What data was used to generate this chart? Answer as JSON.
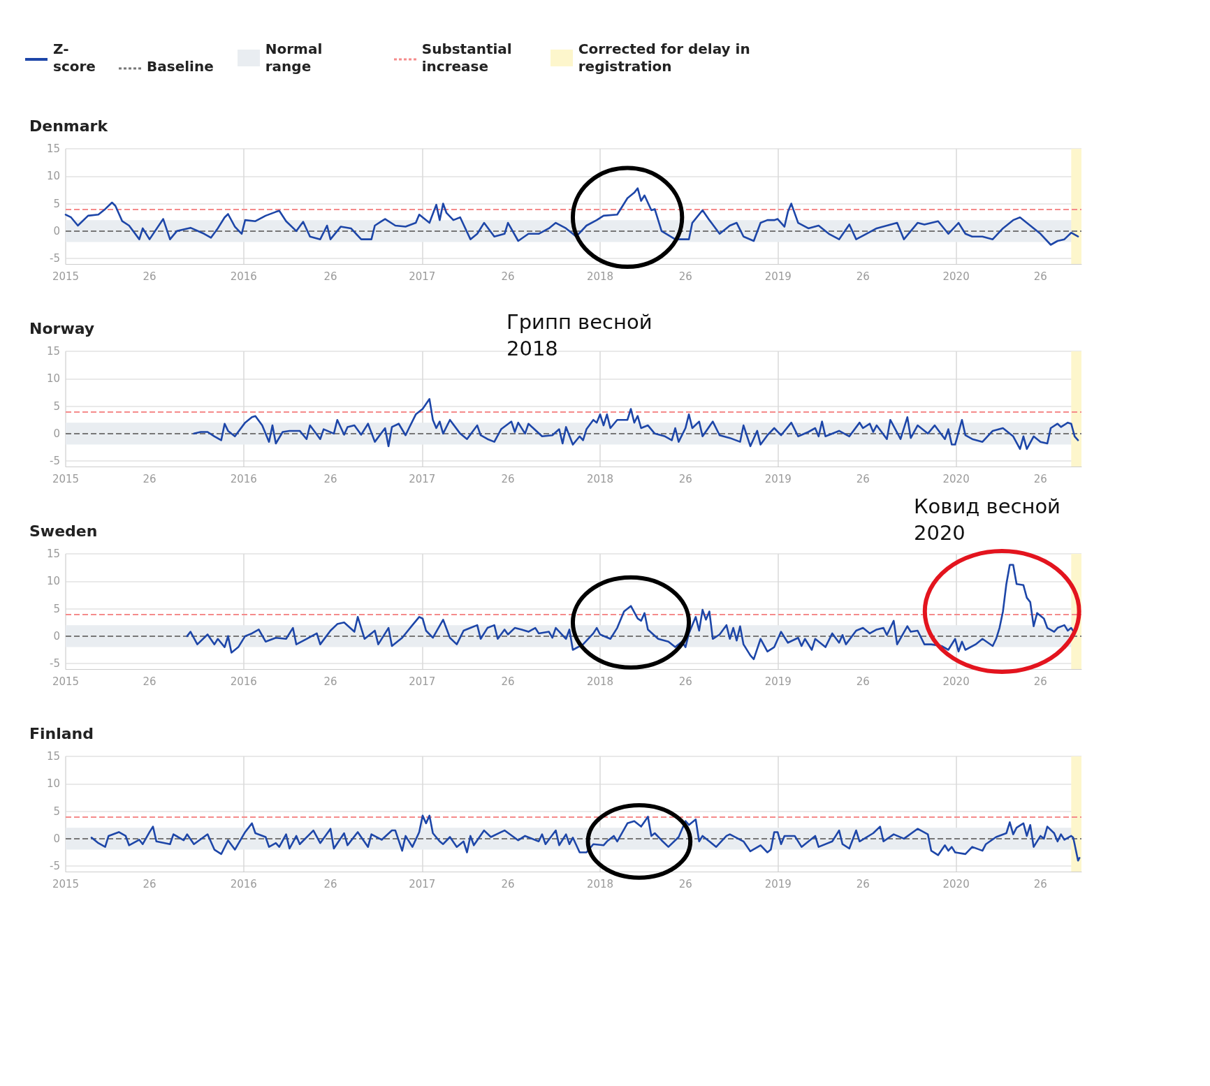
{
  "chart_data": [
    {
      "type": "line",
      "title": "Denmark",
      "legend": "top left",
      "marker": "none",
      "line_style": "solid",
      "grid": true,
      "xlim": [
        "2015-01-01",
        "2020-09-14"
      ],
      "xticks": [
        {
          "value": "2015-01-01",
          "label": "2015"
        },
        {
          "value": "2015-06-22",
          "label": "26"
        },
        {
          "value": "2016-01-01",
          "label": "2016"
        },
        {
          "value": "2016-06-27",
          "label": "26"
        },
        {
          "value": "2017-01-01",
          "label": "2017"
        },
        {
          "value": "2017-06-26",
          "label": "26"
        },
        {
          "value": "2018-01-01",
          "label": "2018"
        },
        {
          "value": "2018-06-25",
          "label": "26"
        },
        {
          "value": "2019-01-01",
          "label": "2019"
        },
        {
          "value": "2019-06-24",
          "label": "26"
        },
        {
          "value": "2020-01-01",
          "label": "2020"
        },
        {
          "value": "2020-06-22",
          "label": "26"
        }
      ],
      "ylim": [
        -6,
        15
      ],
      "yticks": [
        -5,
        0,
        5,
        10,
        15
      ],
      "ref_lines": [
        {
          "axis": "y",
          "value": 0,
          "label": "Baseline",
          "color": "#777777",
          "line_style": "dashed"
        },
        {
          "axis": "y",
          "value": 4,
          "label": "Substantial increase",
          "color": "#f58b8b",
          "line_style": "dashed"
        }
      ],
      "bands": [
        {
          "axis": "y",
          "from": -2,
          "to": 2,
          "label": "Normal range",
          "color": "#e9edf1"
        },
        {
          "axis": "x",
          "from": "2020-08-24",
          "to": "2020-09-14",
          "label": "Corrected for delay in registration",
          "color": "#fdf6cc"
        }
      ],
      "series": [
        {
          "name": "Z-score",
          "color": "#1d46a8",
          "x": [
            "2015-01-01",
            "2015-01-12",
            "2015-01-26",
            "2015-02-16",
            "2015-03-09",
            "2015-03-23",
            "2015-04-06",
            "2015-04-13",
            "2015-04-27",
            "2015-05-11",
            "2015-06-01",
            "2015-06-08",
            "2015-06-22",
            "2015-07-20",
            "2015-08-03",
            "2015-08-17",
            "2015-09-14",
            "2015-10-12",
            "2015-10-26",
            "2015-11-09",
            "2015-11-23",
            "2015-11-30",
            "2015-12-14",
            "2015-12-28",
            "2016-01-04",
            "2016-01-25",
            "2016-02-15",
            "2016-03-07",
            "2016-03-14",
            "2016-03-28",
            "2016-04-18",
            "2016-05-02",
            "2016-05-16",
            "2016-06-06",
            "2016-06-20",
            "2016-06-27",
            "2016-07-18",
            "2016-08-08",
            "2016-08-29",
            "2016-09-19",
            "2016-09-26",
            "2016-10-10",
            "2016-10-17",
            "2016-11-07",
            "2016-11-28",
            "2016-12-19",
            "2016-12-26",
            "2017-01-16",
            "2017-01-30",
            "2017-02-06",
            "2017-02-13",
            "2017-02-20",
            "2017-03-06",
            "2017-03-20",
            "2017-04-10",
            "2017-04-24",
            "2017-05-08",
            "2017-05-29",
            "2017-06-19",
            "2017-06-26",
            "2017-07-17",
            "2017-08-07",
            "2017-08-28",
            "2017-09-18",
            "2017-10-02",
            "2017-10-23",
            "2017-11-13",
            "2017-12-04",
            "2017-12-25",
            "2018-01-08",
            "2018-02-05",
            "2018-02-26",
            "2018-03-12",
            "2018-03-19",
            "2018-03-26",
            "2018-04-02",
            "2018-04-16",
            "2018-04-23",
            "2018-05-07",
            "2018-06-04",
            "2018-07-02",
            "2018-07-09",
            "2018-07-30",
            "2018-08-13",
            "2018-09-03",
            "2018-09-24",
            "2018-10-08",
            "2018-10-22",
            "2018-11-12",
            "2018-11-26",
            "2018-12-10",
            "2018-12-24",
            "2018-12-31",
            "2019-01-14",
            "2019-01-21",
            "2019-01-28",
            "2019-02-11",
            "2019-03-04",
            "2019-03-25",
            "2019-04-15",
            "2019-05-06",
            "2019-05-27",
            "2019-06-10",
            "2019-07-01",
            "2019-07-22",
            "2019-08-12",
            "2019-09-02",
            "2019-09-16",
            "2019-10-14",
            "2019-10-28",
            "2019-11-25",
            "2019-12-16",
            "2020-01-06",
            "2020-01-20",
            "2020-02-03",
            "2020-02-24",
            "2020-03-16",
            "2020-04-06",
            "2020-04-27",
            "2020-05-11",
            "2020-06-01",
            "2020-06-22",
            "2020-07-13",
            "2020-07-27",
            "2020-08-10",
            "2020-08-24",
            "2020-09-07"
          ],
          "values": [
            3,
            2.5,
            1,
            2.8,
            3,
            4,
            5.2,
            4.6,
            1.8,
            1,
            -1.5,
            0.5,
            -1.5,
            2.2,
            -1.5,
            0,
            0.6,
            -0.5,
            -1.2,
            0.5,
            2.5,
            3.1,
            0.8,
            -0.5,
            2,
            1.8,
            2.8,
            3.5,
            3.7,
            1.8,
            0,
            1.7,
            -1,
            -1.5,
            1,
            -1.5,
            0.8,
            0.5,
            -1.5,
            -1.5,
            1,
            1.8,
            2.2,
            1,
            0.8,
            1.5,
            3,
            1.5,
            4.8,
            2,
            5,
            3.3,
            2,
            2.5,
            -1.5,
            -0.5,
            1.5,
            -1,
            -0.5,
            1.5,
            -1.8,
            -0.5,
            -0.5,
            0.5,
            1.5,
            0.5,
            -1,
            1,
            2,
            2.8,
            3,
            6,
            7,
            7.8,
            5.5,
            6.5,
            3.8,
            4,
            0,
            -1.5,
            -1.5,
            1.5,
            3.8,
            2,
            -0.5,
            1,
            1.5,
            -1,
            -1.8,
            1.5,
            2,
            2,
            2.2,
            0.8,
            3.5,
            5,
            1.5,
            0.5,
            1,
            -0.5,
            -1.5,
            1.2,
            -1.5,
            -0.5,
            0.5,
            1,
            1.5,
            -1.5,
            1.5,
            1.2,
            1.8,
            -0.5,
            1.5,
            -0.5,
            -1,
            -1,
            -1.5,
            0.5,
            2,
            2.5,
            1,
            -0.5,
            -2.5,
            -1.8,
            -1.5,
            -0.3,
            -1
          ]
        }
      ]
    },
    {
      "type": "line",
      "title": "Norway",
      "marker": "none",
      "line_style": "solid",
      "grid": true,
      "annotations": [
        "Грипп весной 2018"
      ],
      "xlim": [
        "2015-01-01",
        "2020-09-14"
      ],
      "xticks": [
        {
          "value": "2015-01-01",
          "label": "2015"
        },
        {
          "value": "2015-06-22",
          "label": "26"
        },
        {
          "value": "2016-01-01",
          "label": "2016"
        },
        {
          "value": "2016-06-27",
          "label": "26"
        },
        {
          "value": "2017-01-01",
          "label": "2017"
        },
        {
          "value": "2017-06-26",
          "label": "26"
        },
        {
          "value": "2018-01-01",
          "label": "2018"
        },
        {
          "value": "2018-06-25",
          "label": "26"
        },
        {
          "value": "2019-01-01",
          "label": "2019"
        },
        {
          "value": "2019-06-24",
          "label": "26"
        },
        {
          "value": "2020-01-01",
          "label": "2020"
        },
        {
          "value": "2020-06-22",
          "label": "26"
        }
      ],
      "ylim": [
        -6,
        15
      ],
      "yticks": [
        -5,
        0,
        5,
        10,
        15
      ],
      "ref_lines": [
        {
          "axis": "y",
          "value": 0,
          "color": "#777777",
          "line_style": "dashed"
        },
        {
          "axis": "y",
          "value": 4,
          "color": "#f58b8b",
          "line_style": "dashed"
        }
      ],
      "bands": [
        {
          "axis": "y",
          "from": -2,
          "to": 2,
          "color": "#e9edf1"
        },
        {
          "axis": "x",
          "from": "2020-08-24",
          "to": "2020-09-14",
          "color": "#fdf6cc"
        }
      ],
      "series": [
        {
          "color": "#1d46a8",
          "x": [
            "2015-09-21",
            "2015-10-05",
            "2015-10-19",
            "2015-11-02",
            "2015-11-16",
            "2015-11-23",
            "2015-11-30",
            "2015-12-14",
            "2016-01-04",
            "2016-01-18",
            "2016-01-25",
            "2016-02-08",
            "2016-02-22",
            "2016-02-29",
            "2016-03-07",
            "2016-03-21",
            "2016-04-04",
            "2016-04-25",
            "2016-05-09",
            "2016-05-16",
            "2016-06-06",
            "2016-06-13",
            "2016-07-04",
            "2016-07-11",
            "2016-07-25",
            "2016-08-01",
            "2016-08-15",
            "2016-08-29",
            "2016-09-12",
            "2016-09-26",
            "2016-10-17",
            "2016-10-24",
            "2016-10-31",
            "2016-11-14",
            "2016-11-28",
            "2016-12-05",
            "2016-12-19",
            "2017-01-02",
            "2017-01-16",
            "2017-01-23",
            "2017-01-30",
            "2017-02-06",
            "2017-02-13",
            "2017-02-27",
            "2017-03-20",
            "2017-04-03",
            "2017-04-24",
            "2017-05-01",
            "2017-05-15",
            "2017-05-29",
            "2017-06-12",
            "2017-07-03",
            "2017-07-10",
            "2017-07-17",
            "2017-07-31",
            "2017-08-07",
            "2017-09-04",
            "2017-09-25",
            "2017-10-09",
            "2017-10-16",
            "2017-10-23",
            "2017-11-06",
            "2017-11-20",
            "2017-11-27",
            "2017-12-04",
            "2017-12-18",
            "2017-12-25",
            "2018-01-01",
            "2018-01-08",
            "2018-01-15",
            "2018-01-22",
            "2018-02-05",
            "2018-02-26",
            "2018-03-05",
            "2018-03-12",
            "2018-03-19",
            "2018-03-26",
            "2018-04-09",
            "2018-04-23",
            "2018-05-14",
            "2018-05-28",
            "2018-06-04",
            "2018-06-11",
            "2018-06-25",
            "2018-07-02",
            "2018-07-09",
            "2018-07-23",
            "2018-07-30",
            "2018-08-20",
            "2018-09-03",
            "2018-09-24",
            "2018-10-15",
            "2018-10-22",
            "2018-11-05",
            "2018-11-19",
            "2018-11-26",
            "2018-12-10",
            "2018-12-24",
            "2019-01-07",
            "2019-01-28",
            "2019-02-11",
            "2019-03-04",
            "2019-03-18",
            "2019-03-25",
            "2019-04-01",
            "2019-04-08",
            "2019-05-06",
            "2019-05-27",
            "2019-06-17",
            "2019-06-24",
            "2019-07-08",
            "2019-07-15",
            "2019-07-22",
            "2019-08-12",
            "2019-08-19",
            "2019-09-09",
            "2019-09-23",
            "2019-09-30",
            "2019-10-14",
            "2019-11-04",
            "2019-11-18",
            "2019-12-09",
            "2019-12-16",
            "2019-12-23",
            "2019-12-30",
            "2020-01-13",
            "2020-01-20",
            "2020-02-03",
            "2020-02-24",
            "2020-03-16",
            "2020-04-06",
            "2020-04-27",
            "2020-05-11",
            "2020-05-18",
            "2020-05-25",
            "2020-06-08",
            "2020-06-22",
            "2020-07-06",
            "2020-07-13",
            "2020-07-27",
            "2020-08-03",
            "2020-08-17",
            "2020-08-24",
            "2020-08-31",
            "2020-09-07"
          ],
          "values": [
            0,
            0.3,
            0.3,
            -0.5,
            -1.2,
            1.8,
            0.5,
            -0.5,
            2,
            3,
            3.2,
            1.5,
            -1.5,
            1.5,
            -1.8,
            0.3,
            0.5,
            0.5,
            -1,
            1.5,
            -1,
            0.8,
            0,
            2.5,
            -0.2,
            1.2,
            1.5,
            -0.2,
            1.8,
            -1.5,
            1,
            -2.3,
            1.2,
            1.8,
            -0.3,
            1,
            3.5,
            4.5,
            6.3,
            2.5,
            1,
            2.2,
            0,
            2.5,
            0,
            -1,
            1.5,
            -0.3,
            -1,
            -1.5,
            0.8,
            2.2,
            0.3,
            2,
            0,
            1.8,
            -0.5,
            -0.3,
            0.8,
            -1.8,
            1.2,
            -2,
            -0.5,
            -1.2,
            0.8,
            2.5,
            2,
            3.5,
            1.5,
            3.5,
            1,
            2.5,
            2.5,
            4.5,
            2,
            3.2,
            1,
            1.5,
            0,
            -0.5,
            -1.2,
            1,
            -1.5,
            1,
            3.5,
            1,
            2.2,
            -0.5,
            2.2,
            -0.3,
            -0.8,
            -1.5,
            1.5,
            -2.3,
            0.5,
            -2,
            -0.3,
            1,
            -0.3,
            2,
            -0.5,
            0.3,
            1,
            -0.5,
            2.2,
            -0.5,
            0.5,
            -0.5,
            2,
            1,
            1.8,
            0.3,
            1.5,
            -1,
            2.5,
            -1,
            3,
            -0.8,
            1.5,
            0,
            1.5,
            -1,
            0.8,
            -2,
            -2,
            2.5,
            -0.3,
            -1,
            -1.5,
            0.5,
            1,
            -0.5,
            -2.8,
            -0.5,
            -2.8,
            -0.5,
            -1.5,
            -1.8,
            1,
            1.8,
            1.2,
            2,
            1.8,
            -0.5,
            -1.2
          ]
        }
      ]
    },
    {
      "type": "line",
      "title": "Sweden",
      "marker": "none",
      "line_style": "solid",
      "grid": true,
      "annotations": [
        "Ковид весной 2020"
      ],
      "xlim": [
        "2015-01-01",
        "2020-09-14"
      ],
      "xticks": [
        {
          "value": "2015-01-01",
          "label": "2015"
        },
        {
          "value": "2015-06-22",
          "label": "26"
        },
        {
          "value": "2016-01-01",
          "label": "2016"
        },
        {
          "value": "2016-06-27",
          "label": "26"
        },
        {
          "value": "2017-01-01",
          "label": "2017"
        },
        {
          "value": "2017-06-26",
          "label": "26"
        },
        {
          "value": "2018-01-01",
          "label": "2018"
        },
        {
          "value": "2018-06-25",
          "label": "26"
        },
        {
          "value": "2019-01-01",
          "label": "2019"
        },
        {
          "value": "2019-06-24",
          "label": "26"
        },
        {
          "value": "2020-01-01",
          "label": "2020"
        },
        {
          "value": "2020-06-22",
          "label": "26"
        }
      ],
      "ylim": [
        -6,
        15
      ],
      "yticks": [
        -5,
        0,
        5,
        10,
        15
      ],
      "ref_lines": [
        {
          "axis": "y",
          "value": 0,
          "color": "#777777",
          "line_style": "dashed"
        },
        {
          "axis": "y",
          "value": 4,
          "color": "#f58b8b",
          "line_style": "dashed"
        }
      ],
      "bands": [
        {
          "axis": "y",
          "from": -2,
          "to": 2,
          "color": "#e9edf1"
        },
        {
          "axis": "x",
          "from": "2020-08-24",
          "to": "2020-09-14",
          "color": "#fdf6cc"
        }
      ],
      "series": [
        {
          "color": "#1d46a8",
          "x": [
            "2015-09-07",
            "2015-09-14",
            "2015-09-28",
            "2015-10-19",
            "2015-11-02",
            "2015-11-09",
            "2015-11-23",
            "2015-11-30",
            "2015-12-07",
            "2015-12-21",
            "2016-01-04",
            "2016-01-18",
            "2016-02-01",
            "2016-02-15",
            "2016-03-07",
            "2016-03-28",
            "2016-04-11",
            "2016-04-18",
            "2016-05-09",
            "2016-05-30",
            "2016-06-06",
            "2016-06-27",
            "2016-07-11",
            "2016-07-25",
            "2016-08-15",
            "2016-08-22",
            "2016-09-05",
            "2016-09-26",
            "2016-10-03",
            "2016-10-24",
            "2016-10-31",
            "2016-11-21",
            "2016-12-12",
            "2016-12-26",
            "2017-01-02",
            "2017-01-09",
            "2017-01-23",
            "2017-02-13",
            "2017-02-27",
            "2017-03-13",
            "2017-03-27",
            "2017-04-10",
            "2017-04-24",
            "2017-05-01",
            "2017-05-15",
            "2017-05-29",
            "2017-06-05",
            "2017-06-19",
            "2017-06-26",
            "2017-07-10",
            "2017-07-24",
            "2017-08-07",
            "2017-08-21",
            "2017-08-28",
            "2017-09-18",
            "2017-09-25",
            "2017-10-02",
            "2017-10-23",
            "2017-10-30",
            "2017-11-06",
            "2017-11-27",
            "2017-12-18",
            "2017-12-25",
            "2018-01-01",
            "2018-01-22",
            "2018-02-05",
            "2018-02-19",
            "2018-03-05",
            "2018-03-19",
            "2018-03-26",
            "2018-04-02",
            "2018-04-09",
            "2018-04-30",
            "2018-05-21",
            "2018-06-04",
            "2018-06-18",
            "2018-06-25",
            "2018-07-02",
            "2018-07-16",
            "2018-07-23",
            "2018-07-30",
            "2018-08-06",
            "2018-08-13",
            "2018-08-20",
            "2018-09-03",
            "2018-09-17",
            "2018-09-24",
            "2018-10-01",
            "2018-10-08",
            "2018-10-15",
            "2018-10-22",
            "2018-11-05",
            "2018-11-12",
            "2018-11-26",
            "2018-12-10",
            "2018-12-24",
            "2019-01-07",
            "2019-01-21",
            "2019-02-11",
            "2019-02-18",
            "2019-02-25",
            "2019-03-11",
            "2019-03-18",
            "2019-04-08",
            "2019-04-22",
            "2019-05-06",
            "2019-05-13",
            "2019-05-20",
            "2019-06-10",
            "2019-06-24",
            "2019-07-08",
            "2019-07-22",
            "2019-08-05",
            "2019-08-12",
            "2019-08-26",
            "2019-09-02",
            "2019-09-23",
            "2019-09-30",
            "2019-10-14",
            "2019-10-28",
            "2019-11-11",
            "2019-12-02",
            "2019-12-16",
            "2019-12-30",
            "2020-01-06",
            "2020-01-13",
            "2020-01-20",
            "2020-02-10",
            "2020-02-24",
            "2020-03-16",
            "2020-03-23",
            "2020-03-30",
            "2020-04-06",
            "2020-04-13",
            "2020-04-20",
            "2020-04-27",
            "2020-05-04",
            "2020-05-18",
            "2020-05-25",
            "2020-06-01",
            "2020-06-08",
            "2020-06-15",
            "2020-06-29",
            "2020-07-06",
            "2020-07-20",
            "2020-07-27",
            "2020-08-10",
            "2020-08-17",
            "2020-08-24",
            "2020-08-31"
          ],
          "values": [
            0,
            0.8,
            -1.5,
            0.3,
            -1.5,
            -0.5,
            -2,
            0,
            -3,
            -2,
            0,
            0.5,
            1.2,
            -1,
            -0.3,
            -0.5,
            1.5,
            -1.5,
            -0.5,
            0.5,
            -1.5,
            1,
            2.2,
            2.5,
            0.8,
            3.5,
            -0.5,
            1,
            -1.5,
            1.5,
            -1.8,
            -0.3,
            2,
            3.5,
            3.2,
            1,
            -0.3,
            3,
            -0.3,
            -1.5,
            1,
            1.5,
            2,
            -0.5,
            1.5,
            2,
            -0.5,
            1.2,
            0.3,
            1.5,
            1.2,
            0.8,
            1.5,
            0.5,
            0.8,
            -0.3,
            1.5,
            -0.5,
            1.2,
            -2.5,
            -1.5,
            0.5,
            1.5,
            0.3,
            -0.5,
            1.5,
            4.5,
            5.5,
            3.2,
            2.8,
            4.2,
            1.2,
            -0.5,
            -1,
            -2,
            -1,
            -2,
            0.5,
            3.5,
            1,
            4.8,
            3,
            4.5,
            -0.5,
            0.3,
            2,
            -0.5,
            1.5,
            -0.8,
            1.8,
            -1.5,
            -3.5,
            -4.2,
            -0.5,
            -2.8,
            -2,
            0.8,
            -1.2,
            -0.3,
            -1.8,
            -0.5,
            -2.5,
            -0.5,
            -2,
            0.5,
            -1.2,
            0.2,
            -1.5,
            1,
            1.5,
            0.5,
            1.2,
            1.5,
            0.2,
            2.8,
            -1.5,
            1.8,
            0.8,
            1,
            -1.5,
            -1.5,
            -1.8,
            -2.5,
            -0.5,
            -2.8,
            -1,
            -2.5,
            -1.5,
            -0.5,
            -1.8,
            -0.5,
            1.5,
            4.5,
            9.5,
            13,
            13,
            9.5,
            9.3,
            7,
            6.2,
            1.8,
            4.2,
            3.2,
            1.5,
            0.8,
            1.5,
            2,
            1,
            1.5,
            0.5
          ]
        }
      ]
    },
    {
      "type": "line",
      "title": "Finland",
      "marker": "none",
      "line_style": "solid",
      "grid": true,
      "xlim": [
        "2015-01-01",
        "2020-09-14"
      ],
      "xticks": [
        {
          "value": "2015-01-01",
          "label": "2015"
        },
        {
          "value": "2015-06-22",
          "label": "26"
        },
        {
          "value": "2016-01-01",
          "label": "2016"
        },
        {
          "value": "2016-06-27",
          "label": "26"
        },
        {
          "value": "2017-01-01",
          "label": "2017"
        },
        {
          "value": "2017-06-26",
          "label": "26"
        },
        {
          "value": "2018-01-01",
          "label": "2018"
        },
        {
          "value": "2018-06-25",
          "label": "26"
        },
        {
          "value": "2019-01-01",
          "label": "2019"
        },
        {
          "value": "2019-06-24",
          "label": "26"
        },
        {
          "value": "2020-01-01",
          "label": "2020"
        },
        {
          "value": "2020-06-22",
          "label": "26"
        }
      ],
      "ylim": [
        -6,
        15
      ],
      "yticks": [
        -5,
        0,
        5,
        10,
        15
      ],
      "ref_lines": [
        {
          "axis": "y",
          "value": 0,
          "color": "#777777",
          "line_style": "dashed"
        },
        {
          "axis": "y",
          "value": 4,
          "color": "#f58b8b",
          "line_style": "dashed"
        }
      ],
      "bands": [
        {
          "axis": "y",
          "from": -2,
          "to": 2,
          "color": "#e9edf1"
        },
        {
          "axis": "x",
          "from": "2020-08-24",
          "to": "2020-09-14",
          "color": "#fdf6cc"
        }
      ],
      "series": [
        {
          "color": "#1d46a8",
          "x": [
            "2015-02-23",
            "2015-03-09",
            "2015-03-23",
            "2015-03-30",
            "2015-04-20",
            "2015-05-04",
            "2015-05-11",
            "2015-06-01",
            "2015-06-08",
            "2015-06-22",
            "2015-06-29",
            "2015-07-06",
            "2015-08-03",
            "2015-08-10",
            "2015-08-31",
            "2015-09-07",
            "2015-09-21",
            "2015-10-19",
            "2015-11-02",
            "2015-11-16",
            "2015-11-30",
            "2015-12-14",
            "2016-01-04",
            "2016-01-18",
            "2016-01-25",
            "2016-02-15",
            "2016-02-22",
            "2016-03-07",
            "2016-03-14",
            "2016-03-28",
            "2016-04-04",
            "2016-04-18",
            "2016-04-25",
            "2016-05-23",
            "2016-06-06",
            "2016-06-27",
            "2016-07-04",
            "2016-07-25",
            "2016-08-01",
            "2016-08-22",
            "2016-09-12",
            "2016-09-19",
            "2016-10-10",
            "2016-10-31",
            "2016-11-07",
            "2016-11-21",
            "2016-11-28",
            "2016-12-12",
            "2016-12-26",
            "2017-01-02",
            "2017-01-09",
            "2017-01-16",
            "2017-01-23",
            "2017-02-06",
            "2017-02-13",
            "2017-02-27",
            "2017-03-13",
            "2017-03-27",
            "2017-04-03",
            "2017-04-10",
            "2017-04-17",
            "2017-05-08",
            "2017-05-22",
            "2017-06-12",
            "2017-06-19",
            "2017-07-17",
            "2017-07-31",
            "2017-08-28",
            "2017-09-04",
            "2017-09-11",
            "2017-10-02",
            "2017-10-09",
            "2017-10-23",
            "2017-10-30",
            "2017-11-06",
            "2017-11-20",
            "2017-12-04",
            "2017-12-18",
            "2018-01-08",
            "2018-01-15",
            "2018-01-29",
            "2018-02-05",
            "2018-02-26",
            "2018-03-12",
            "2018-03-26",
            "2018-04-09",
            "2018-04-16",
            "2018-04-23",
            "2018-05-07",
            "2018-05-21",
            "2018-06-11",
            "2018-06-25",
            "2018-07-02",
            "2018-07-16",
            "2018-07-23",
            "2018-07-30",
            "2018-08-27",
            "2018-09-17",
            "2018-09-24",
            "2018-10-22",
            "2018-11-05",
            "2018-11-26",
            "2018-12-10",
            "2018-12-17",
            "2018-12-24",
            "2018-12-31",
            "2019-01-07",
            "2019-01-14",
            "2019-02-04",
            "2019-02-18",
            "2019-03-18",
            "2019-03-25",
            "2019-04-22",
            "2019-05-06",
            "2019-05-13",
            "2019-05-27",
            "2019-06-10",
            "2019-06-17",
            "2019-07-15",
            "2019-07-29",
            "2019-08-05",
            "2019-08-26",
            "2019-09-16",
            "2019-10-14",
            "2019-11-04",
            "2019-11-11",
            "2019-11-25",
            "2019-12-09",
            "2019-12-16",
            "2019-12-23",
            "2019-12-30",
            "2020-01-20",
            "2020-02-03",
            "2020-02-24",
            "2020-03-02",
            "2020-03-23",
            "2020-04-13",
            "2020-04-20",
            "2020-04-27",
            "2020-05-04",
            "2020-05-18",
            "2020-05-25",
            "2020-06-01",
            "2020-06-08",
            "2020-06-22",
            "2020-06-29",
            "2020-07-06",
            "2020-07-20",
            "2020-07-27",
            "2020-08-03",
            "2020-08-10",
            "2020-08-24",
            "2020-08-28",
            "2020-08-31",
            "2020-09-07",
            "2020-09-10"
          ],
          "values": [
            0.2,
            -0.8,
            -1.5,
            0.5,
            1.2,
            0.5,
            -1.2,
            -0.2,
            -1,
            1.2,
            2.2,
            -0.5,
            -1,
            0.8,
            -0.3,
            0.8,
            -1,
            0.8,
            -2,
            -2.8,
            -0.3,
            -2,
            1.2,
            2.8,
            1,
            0.3,
            -1.5,
            -0.8,
            -1.5,
            0.8,
            -1.8,
            0.5,
            -1,
            1.5,
            -0.8,
            1.8,
            -1.8,
            1,
            -1.2,
            1.2,
            -1.5,
            0.8,
            -0.2,
            1.5,
            1.5,
            -2.2,
            0.5,
            -1.5,
            1.2,
            4.2,
            2.8,
            4.2,
            1,
            -0.5,
            -1,
            0.3,
            -1.5,
            -0.5,
            -2.5,
            0.5,
            -1.2,
            1.5,
            0.3,
            1.2,
            1.5,
            -0.3,
            0.5,
            -0.5,
            0.8,
            -1,
            1.5,
            -1.2,
            0.8,
            -1,
            0.2,
            -2.5,
            -2.5,
            -1,
            -1.2,
            -0.5,
            0.5,
            -0.5,
            2.8,
            3.2,
            2.2,
            4,
            0.5,
            1,
            -0.3,
            -1.5,
            0.3,
            3.2,
            2.5,
            3.5,
            -0.5,
            0.5,
            -1.5,
            0.5,
            0.8,
            -0.5,
            -2.3,
            -1.2,
            -2.5,
            -2,
            1.2,
            1.2,
            -1,
            0.5,
            0.5,
            -1.5,
            0.5,
            -1.5,
            -0.5,
            1.5,
            -1,
            -1.8,
            1.5,
            -0.5,
            1,
            2.2,
            -0.5,
            0.8,
            0,
            1.8,
            0.8,
            -2.2,
            -3,
            -1.2,
            -2.2,
            -1.5,
            -2.5,
            -2.8,
            -1.5,
            -2.2,
            -1,
            0.3,
            1,
            3,
            0.8,
            2,
            2.8,
            0.5,
            2.5,
            -1.5,
            0.5,
            0,
            2.2,
            1,
            -0.5,
            0.8,
            -0.2,
            0.5,
            0.2,
            -1,
            -4,
            -3.5
          ]
        }
      ]
    }
  ]
}
